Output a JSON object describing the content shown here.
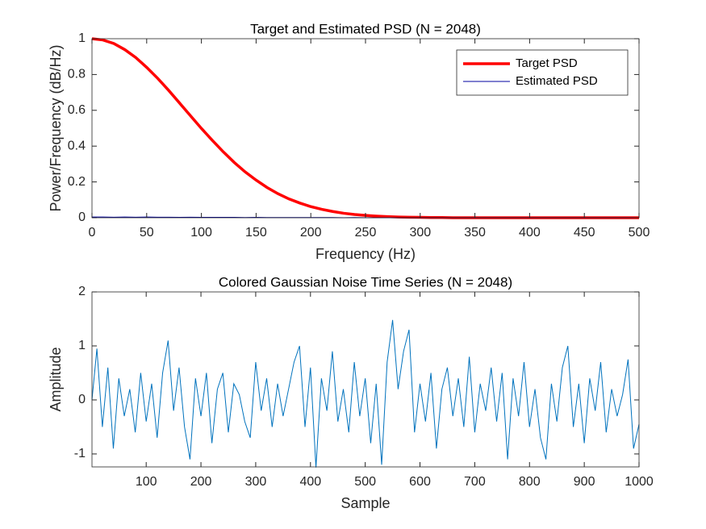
{
  "chart_data": [
    {
      "type": "line",
      "title": "Target and Estimated PSD (N = 2048)",
      "xlabel": "Frequency (Hz)",
      "ylabel": "Power/Frequency (dB/Hz)",
      "x": [
        0,
        10,
        20,
        30,
        40,
        50,
        60,
        70,
        80,
        90,
        100,
        110,
        120,
        130,
        140,
        150,
        160,
        170,
        180,
        190,
        200,
        210,
        220,
        230,
        240,
        250,
        260,
        270,
        280,
        290,
        300,
        310,
        320,
        330,
        340,
        350,
        360,
        370,
        380,
        390,
        400,
        410,
        420,
        430,
        440,
        450,
        460,
        470,
        480,
        490,
        500
      ],
      "series": [
        {
          "name": "Target PSD",
          "color": "#ff0000",
          "line_width": 3.5,
          "values": [
            1,
            0.993,
            0.973,
            0.939,
            0.895,
            0.84,
            0.779,
            0.712,
            0.641,
            0.57,
            0.499,
            0.432,
            0.368,
            0.309,
            0.256,
            0.21,
            0.169,
            0.134,
            0.105,
            0.082,
            0.062,
            0.047,
            0.035,
            0.025,
            0.018,
            0.013,
            0.009,
            0.006,
            0.004,
            0.003,
            0.002,
            0.001,
            0.001,
            0,
            0,
            0,
            0,
            0,
            0,
            0,
            0,
            0,
            0,
            0,
            0,
            0,
            0,
            0,
            0,
            0,
            0
          ]
        },
        {
          "name": "Estimated PSD",
          "color": "#0000a0",
          "line_width": 1,
          "values": [
            0.004,
            0.004,
            0.003,
            0.004,
            0.003,
            0.004,
            0.003,
            0.003,
            0.002,
            0.003,
            0.002,
            0.002,
            0.002,
            0.002,
            0.001,
            0.002,
            0.001,
            0.001,
            0.001,
            0.001,
            0.001,
            0.001,
            0.001,
            0,
            0.001,
            0,
            0,
            0,
            0,
            0,
            0,
            0,
            0,
            0,
            0,
            0,
            0,
            0,
            0,
            0,
            0,
            0,
            0,
            0,
            0,
            0,
            0,
            0,
            0,
            0,
            0
          ]
        }
      ],
      "xlim": [
        0,
        500
      ],
      "ylim": [
        0,
        1
      ],
      "xticks": [
        0,
        50,
        100,
        150,
        200,
        250,
        300,
        350,
        400,
        450,
        500
      ],
      "yticks": [
        0,
        0.2,
        0.4,
        0.6,
        0.8,
        1
      ],
      "legend": "northeast"
    },
    {
      "type": "line",
      "title": "Colored Gaussian Noise Time Series (N = 2048)",
      "xlabel": "Sample",
      "ylabel": "Amplitude",
      "x": [
        1,
        10,
        20,
        30,
        40,
        50,
        60,
        70,
        80,
        90,
        100,
        110,
        120,
        130,
        140,
        150,
        160,
        170,
        180,
        190,
        200,
        210,
        220,
        230,
        240,
        250,
        260,
        270,
        280,
        290,
        300,
        310,
        320,
        330,
        340,
        350,
        360,
        370,
        380,
        390,
        400,
        410,
        420,
        430,
        440,
        450,
        460,
        470,
        480,
        490,
        500,
        510,
        520,
        530,
        540,
        550,
        560,
        570,
        580,
        590,
        600,
        610,
        620,
        630,
        640,
        650,
        660,
        670,
        680,
        690,
        700,
        710,
        720,
        730,
        740,
        750,
        760,
        770,
        780,
        790,
        800,
        810,
        820,
        830,
        840,
        850,
        860,
        870,
        880,
        890,
        900,
        910,
        920,
        930,
        940,
        950,
        960,
        970,
        980,
        990,
        1000
      ],
      "series": [
        {
          "color": "#0072bd",
          "line_width": 1,
          "values": [
            0,
            0.95,
            -0.5,
            0.6,
            -0.9,
            0.4,
            -0.3,
            0.2,
            -0.6,
            0.5,
            -0.4,
            0.3,
            -0.7,
            0.5,
            1.1,
            -0.2,
            0.6,
            -0.5,
            -1.1,
            0.4,
            -0.3,
            0.5,
            -0.8,
            0.2,
            0.5,
            -0.6,
            0.3,
            0.1,
            -0.4,
            -0.7,
            0.7,
            -0.2,
            0.4,
            -0.5,
            0.3,
            -0.3,
            0.2,
            0.7,
            1,
            -0.5,
            0.6,
            -1.25,
            0.4,
            -0.2,
            0.9,
            -0.4,
            0.2,
            -0.6,
            0.7,
            -0.3,
            0.4,
            -0.8,
            0.3,
            -1.2,
            0.7,
            1.48,
            0.2,
            0.9,
            1.3,
            -0.6,
            0.3,
            -0.4,
            0.5,
            -0.9,
            0.2,
            0.6,
            -0.3,
            0.4,
            -0.5,
            0.8,
            -0.6,
            0.3,
            -0.2,
            0.6,
            -0.4,
            0.5,
            -1.1,
            0.4,
            -0.3,
            0.7,
            -0.5,
            0.2,
            -0.7,
            -1.1,
            0.3,
            -0.4,
            0.6,
            1,
            -0.5,
            0.3,
            -0.8,
            0.4,
            -0.2,
            0.7,
            -0.6,
            0.2,
            -0.3,
            0.1,
            0.75,
            -0.9,
            -0.45
          ]
        }
      ],
      "xlim": [
        1,
        1000
      ],
      "ylim": [
        -1.24,
        2
      ],
      "xticks": [
        100,
        200,
        300,
        400,
        500,
        600,
        700,
        800,
        900,
        1000
      ],
      "yticks": [
        -1,
        0,
        1,
        2
      ]
    }
  ]
}
